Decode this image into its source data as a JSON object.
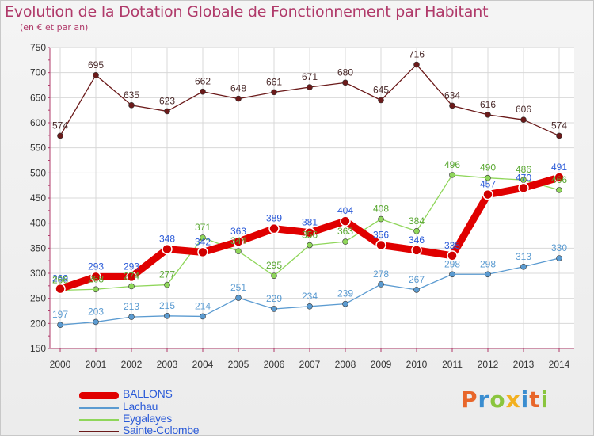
{
  "header": {
    "title": "Evolution de la Dotation Globale de Fonctionnement par Habitant",
    "subtitle": "(en € et par an)"
  },
  "logo": {
    "text": "Proxiti",
    "colors": [
      "#e8662a",
      "#3a8dd0",
      "#8ac53e",
      "#f2b01f",
      "#3a8dd0",
      "#e8662a",
      "#8ac53e"
    ]
  },
  "colors": {
    "title": "#b03a6a",
    "axis": "#b03a6a",
    "grid": "#d8d8d8"
  },
  "chart_data": {
    "type": "line",
    "title": "Evolution de la Dotation Globale de Fonctionnement par Habitant",
    "subtitle": "(en € et par an)",
    "x": [
      "2000",
      "2001",
      "2002",
      "2003",
      "2004",
      "2005",
      "2006",
      "2007",
      "2008",
      "2009",
      "2010",
      "2011",
      "2012",
      "2013",
      "2014"
    ],
    "ylim": [
      150,
      750
    ],
    "yticks": [
      150,
      200,
      250,
      300,
      350,
      400,
      450,
      500,
      550,
      600,
      650,
      700,
      750
    ],
    "grid": true,
    "legend_position": "bottom-left",
    "series": [
      {
        "name": "BALLONS",
        "color": "#e00000",
        "label_color": "#2a5ad8",
        "emphasis": true,
        "values": [
          269,
          293,
          293,
          348,
          342,
          363,
          389,
          381,
          404,
          356,
          346,
          335,
          457,
          470,
          491
        ]
      },
      {
        "name": "Lachau",
        "color": "#5b9bd1",
        "label_color": "#5b9bd1",
        "values": [
          197,
          203,
          213,
          215,
          214,
          251,
          229,
          234,
          239,
          278,
          267,
          298,
          298,
          313,
          330
        ]
      },
      {
        "name": "Eygalayes",
        "color": "#8fd65a",
        "label_color": "#5aa832",
        "values": [
          266,
          268,
          274,
          277,
          371,
          344,
          295,
          356,
          363,
          408,
          384,
          496,
          490,
          486,
          466
        ]
      },
      {
        "name": "Sainte-Colombe",
        "color": "#6b1a1a",
        "label_color": "#4a2a2a",
        "values": [
          574,
          695,
          635,
          623,
          662,
          648,
          661,
          671,
          680,
          645,
          716,
          634,
          616,
          606,
          574
        ]
      }
    ]
  }
}
